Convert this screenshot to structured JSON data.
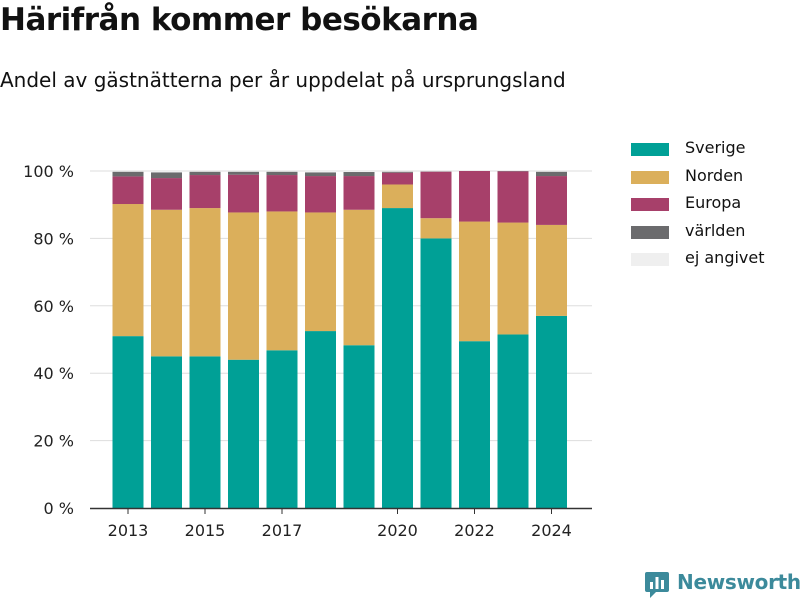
{
  "header": {
    "title": "Härifrån kommer besökarna",
    "subtitle": "Andel av gästnätterna per år uppdelat på ursprungsland"
  },
  "brand": {
    "name": "Newsworthy",
    "icon": "newsworthy-logo-icon",
    "color": "#3c8a9b"
  },
  "chart_data": {
    "type": "bar",
    "stacked": true,
    "x": [
      2013,
      2014,
      2015,
      2016,
      2017,
      2018,
      2019,
      2020,
      2021,
      2022,
      2023,
      2024
    ],
    "x_tick_labels": [
      "2013",
      "2015",
      "2017",
      "2020",
      "2022",
      "2024"
    ],
    "x_tick_values": [
      2013,
      2015,
      2017,
      2020,
      2022,
      2024
    ],
    "ylim": [
      0,
      100
    ],
    "y_ticks": [
      0,
      20,
      40,
      60,
      80,
      100
    ],
    "y_tick_labels": [
      "0 %",
      "20 %",
      "40 %",
      "60 %",
      "80 %",
      "100 %"
    ],
    "grid": "horizontal",
    "legend_position": "top-right",
    "series": [
      {
        "name": "Sverige",
        "color": "#00a096",
        "values": [
          51,
          45,
          45,
          44,
          46.8,
          52.5,
          48.3,
          89,
          80,
          49.5,
          51.5,
          57
        ]
      },
      {
        "name": "Norden",
        "color": "#dbaf5b",
        "values": [
          39.2,
          43.5,
          44,
          43.7,
          41.2,
          35.2,
          40.2,
          7,
          6,
          35.5,
          33.2,
          27
        ]
      },
      {
        "name": "Europa",
        "color": "#a7406a",
        "values": [
          8.2,
          9.4,
          9.8,
          11.2,
          10.8,
          10.8,
          10,
          3.5,
          13.8,
          15,
          15.2,
          14.5
        ]
      },
      {
        "name": "världen",
        "color": "#6b6b6d",
        "values": [
          1.4,
          1.7,
          1.0,
          0.9,
          1.0,
          1.1,
          1.2,
          0.3,
          0.1,
          0,
          0.1,
          1.3
        ]
      },
      {
        "name": "ej angivet",
        "color": "#efefef",
        "values": [
          0.2,
          0.4,
          0.2,
          0.2,
          0.2,
          0.4,
          0.3,
          0.2,
          0.1,
          0,
          0,
          0.2
        ]
      }
    ]
  }
}
